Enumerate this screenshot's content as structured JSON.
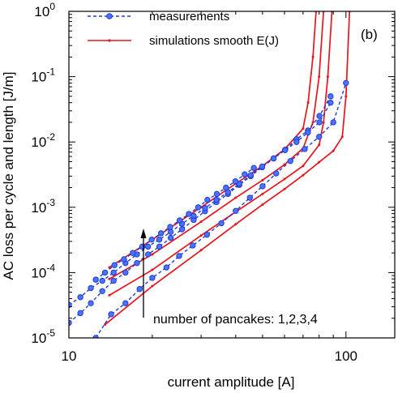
{
  "chart_data": {
    "type": "line",
    "x_scale": "log",
    "y_scale": "log",
    "xlim": [
      10,
      150
    ],
    "ylim": [
      1e-05,
      1
    ],
    "xlabel": "current amplitude [A]",
    "ylabel": "AC loss per cycle and length [J/m]",
    "x_ticks": [
      {
        "value": 10,
        "label": "10"
      },
      {
        "value": 100,
        "label": "100"
      }
    ],
    "y_ticks": [
      {
        "value": 1e-05,
        "base": "10",
        "exp": "-5"
      },
      {
        "value": 0.0001,
        "base": "10",
        "exp": "-4"
      },
      {
        "value": 0.001,
        "base": "10",
        "exp": "-3"
      },
      {
        "value": 0.01,
        "base": "10",
        "exp": "-2"
      },
      {
        "value": 0.1,
        "base": "10",
        "exp": "-1"
      },
      {
        "value": 1,
        "base": "10",
        "exp": "0"
      }
    ],
    "panel_label": "(b)",
    "legend_position": "top-left",
    "annotation": "number of pancakes: 1,2,3,4",
    "colors": {
      "measurements": "#1f3bd6",
      "simulations": "#e8141c",
      "marker_fill": "#4a73ff"
    },
    "series": [
      {
        "name": "measurements",
        "group": "measurements",
        "pancakes": 1,
        "x": [
          11.5,
          12.5,
          14.2,
          16,
          18,
          20,
          22.5,
          25,
          28,
          31.5,
          35.5,
          40,
          45,
          50,
          56,
          63,
          71,
          80,
          90,
          100
        ],
        "y": [
          8.5e-06,
          1e-05,
          2.3e-05,
          3.4e-05,
          5.6e-05,
          8.3e-05,
          0.00012,
          0.00018,
          0.00026,
          0.00038,
          0.00057,
          0.00088,
          0.0014,
          0.0021,
          0.0033,
          0.0051,
          0.0078,
          0.012,
          0.02,
          0.08
        ]
      },
      {
        "name": "measurements",
        "group": "measurements",
        "pancakes": 2,
        "x": [
          10,
          11,
          12,
          13.2,
          14.5,
          16,
          17.6,
          19.3,
          21.2,
          23.3,
          25.6,
          28.2,
          31,
          34.1,
          37.5,
          41.2,
          45.3,
          49.8,
          54.8,
          60.3,
          66.3,
          72.9,
          80.2,
          88
        ],
        "y": [
          1.7e-05,
          2.4e-05,
          3.4e-05,
          5.2e-05,
          7.5e-05,
          0.0001,
          0.00014,
          0.00019,
          0.00025,
          0.00034,
          0.00046,
          0.00064,
          0.00087,
          0.0012,
          0.0016,
          0.0022,
          0.003,
          0.0041,
          0.0056,
          0.0076,
          0.011,
          0.015,
          0.025,
          0.05
        ]
      },
      {
        "name": "measurements",
        "group": "measurements",
        "pancakes": 3,
        "x": [
          10,
          11,
          12,
          13.2,
          14.5,
          16,
          17.6,
          19.3,
          21.2,
          23.3,
          25.6,
          28.2,
          31,
          34.1,
          37.5,
          41.2,
          45.3,
          49.8,
          54.8,
          60.3,
          66.3,
          72.9,
          80.2,
          88
        ],
        "y": [
          3.2e-05,
          4.2e-05,
          5.8e-05,
          7.5e-05,
          0.0001,
          0.00014,
          0.00019,
          0.00025,
          0.00032,
          0.00042,
          0.00056,
          0.00074,
          0.00097,
          0.0013,
          0.0017,
          0.0023,
          0.0031,
          0.0042,
          0.0056,
          0.0075,
          0.01,
          0.014,
          0.02,
          0.04
        ]
      },
      {
        "name": "measurements",
        "group": "measurements",
        "pancakes": 4,
        "x": [
          12.5,
          13.5,
          14.6,
          15.8,
          17,
          18.4,
          19.9,
          21.5,
          23.2,
          25.1,
          27.1,
          29.3,
          31.6,
          34.2,
          36.9,
          39.9,
          43.1,
          46.5
        ],
        "y": [
          7.8e-05,
          0.0001,
          0.00013,
          0.00016,
          0.0002,
          0.00025,
          0.00032,
          0.0004,
          0.0005,
          0.00063,
          0.00079,
          0.001,
          0.0013,
          0.0016,
          0.002,
          0.0025,
          0.0032,
          0.004
        ]
      },
      {
        "name": "simulations smooth E(J)",
        "group": "simulations",
        "pancakes": 1,
        "x": [
          13.5,
          20,
          30,
          40,
          50,
          60,
          70,
          80,
          90,
          97,
          100,
          103
        ],
        "y": [
          1.6e-05,
          6.2e-05,
          0.00022,
          0.00055,
          0.0011,
          0.0019,
          0.0031,
          0.0049,
          0.0073,
          0.012,
          0.05,
          1.0
        ]
      },
      {
        "name": "simulations smooth E(J)",
        "group": "simulations",
        "pancakes": 2,
        "x": [
          14,
          20,
          30,
          40,
          50,
          60,
          70,
          80,
          83,
          86,
          89
        ],
        "y": [
          4.5e-05,
          0.00011,
          0.00037,
          0.00085,
          0.0016,
          0.0027,
          0.0043,
          0.009,
          0.02,
          0.1,
          1.0
        ]
      },
      {
        "name": "simulations smooth E(J)",
        "group": "simulations",
        "pancakes": 3,
        "x": [
          14,
          20,
          30,
          40,
          50,
          60,
          70,
          76,
          80,
          83
        ],
        "y": [
          8e-05,
          0.00019,
          0.0006,
          0.0014,
          0.0026,
          0.0045,
          0.008,
          0.02,
          0.1,
          1.0
        ]
      },
      {
        "name": "simulations smooth E(J)",
        "group": "simulations",
        "pancakes": 4,
        "x": [
          14,
          20,
          30,
          40,
          50,
          60,
          70,
          73,
          76,
          78
        ],
        "y": [
          0.00012,
          0.00032,
          0.001,
          0.0023,
          0.0043,
          0.0077,
          0.016,
          0.04,
          0.2,
          1.0
        ]
      }
    ]
  }
}
